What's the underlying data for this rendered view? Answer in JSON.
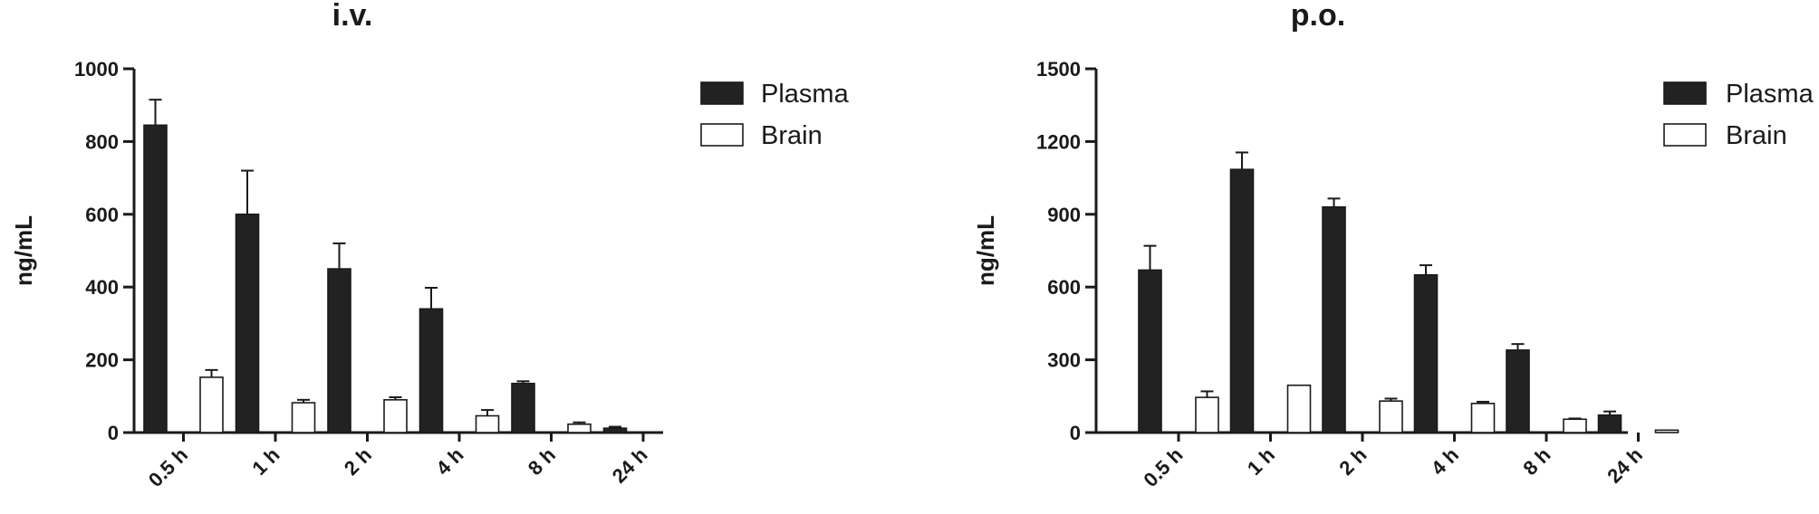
{
  "chart_data": [
    {
      "type": "bar",
      "title": "i.v.",
      "xlabel": "",
      "ylabel": "ng/mL",
      "categories": [
        "0.5 h",
        "1 h",
        "2 h",
        "4 h",
        "8 h",
        "24 h"
      ],
      "ylim": [
        0,
        1000
      ],
      "yticks": [
        0,
        200,
        400,
        600,
        800,
        1000
      ],
      "grid": false,
      "legend_position": "top-right",
      "series": [
        {
          "name": "Plasma",
          "fill": "#222222",
          "values": [
            845,
            600,
            450,
            340,
            135,
            12
          ],
          "errors": [
            70,
            120,
            70,
            58,
            6,
            4
          ]
        },
        {
          "name": "Brain",
          "fill": "#ffffff",
          "values": [
            152,
            82,
            90,
            46,
            23,
            0
          ],
          "errors": [
            20,
            8,
            7,
            16,
            5,
            0
          ]
        }
      ]
    },
    {
      "type": "bar",
      "title": "p.o.",
      "xlabel": "",
      "ylabel": "ng/mL",
      "categories": [
        "0.5 h",
        "1 h",
        "2 h",
        "4 h",
        "8 h",
        "24 h"
      ],
      "ylim": [
        0,
        1500
      ],
      "yticks": [
        0,
        300,
        600,
        900,
        1200,
        1500
      ],
      "grid": false,
      "legend_position": "top-right",
      "series": [
        {
          "name": "Plasma",
          "fill": "#222222",
          "values": [
            670,
            1085,
            930,
            650,
            340,
            72
          ],
          "errors": [
            100,
            70,
            35,
            40,
            25,
            15
          ]
        },
        {
          "name": "Brain",
          "fill": "#ffffff",
          "values": [
            145,
            195,
            130,
            120,
            55,
            10
          ],
          "errors": [
            25,
            0,
            10,
            7,
            3,
            0
          ]
        }
      ]
    }
  ]
}
